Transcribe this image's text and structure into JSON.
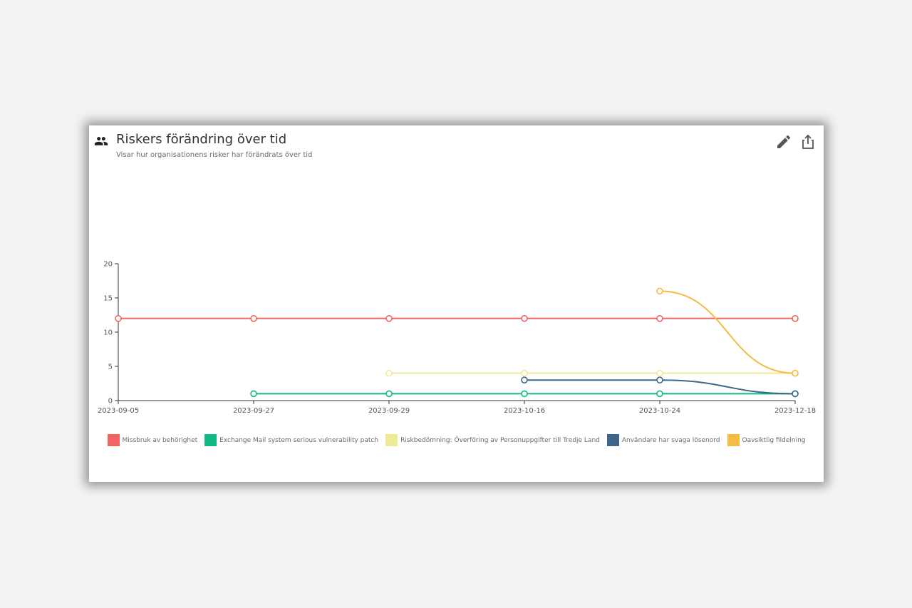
{
  "widget": {
    "title": "Riskers förändring över tid",
    "subtitle": "Visar hur organisationens risker har förändrats över tid",
    "header_icon": "people-icon",
    "edit_icon": "pencil-icon",
    "share_icon": "share-icon"
  },
  "chart_data": {
    "type": "line",
    "title": "",
    "xlabel": "",
    "ylabel": "",
    "ylim": [
      0,
      20
    ],
    "yticks": [
      0,
      5,
      10,
      15,
      20
    ],
    "categories": [
      "2023-09-05",
      "2023-09-27",
      "2023-09-29",
      "2023-10-16",
      "2023-10-24",
      "2023-12-18"
    ],
    "grid": false,
    "legend_position": "bottom",
    "series": [
      {
        "name": "Missbruk av behörighet",
        "color": "#f26464",
        "values": [
          12,
          12,
          12,
          12,
          12,
          12
        ]
      },
      {
        "name": "Exchange Mail system serious vulnerability patch",
        "color": "#12b886",
        "values": [
          null,
          1,
          1,
          1,
          1,
          1
        ]
      },
      {
        "name": "Riskbedömning: Överföring av Personuppgifter till Tredje Land",
        "color": "#eeea96",
        "values": [
          null,
          null,
          4,
          4,
          4,
          4
        ]
      },
      {
        "name": "Användare har svaga lösenord",
        "color": "#3d6688",
        "values": [
          null,
          null,
          null,
          3,
          3,
          1
        ]
      },
      {
        "name": "Oavsiktlig fildelning",
        "color": "#f6bb42",
        "values": [
          null,
          null,
          null,
          null,
          16,
          4
        ]
      }
    ]
  }
}
